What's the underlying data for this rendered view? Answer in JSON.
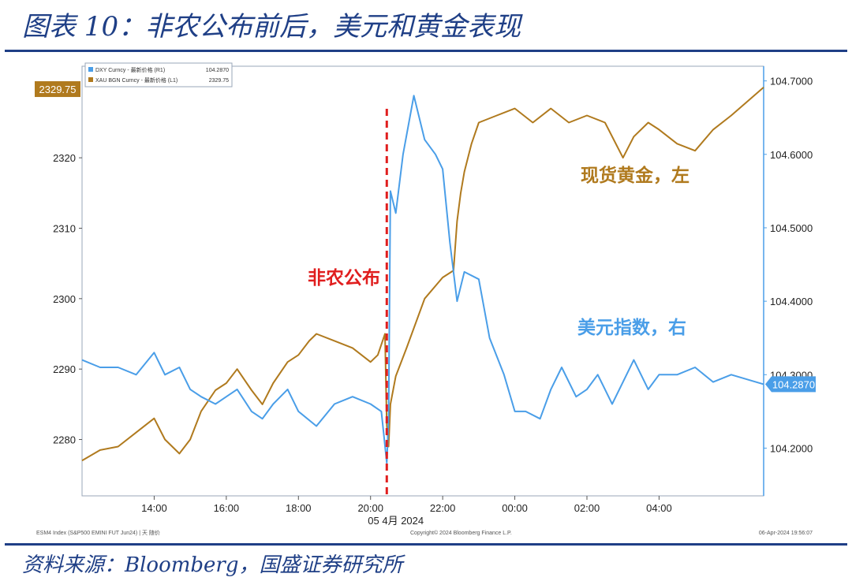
{
  "title": "图表 10：非农公布前后，美元和黄金表现",
  "source": "资料来源：Bloomberg，国盛证券研究所",
  "chart_data": {
    "type": "line",
    "legend": {
      "placement": "top-left",
      "entries": [
        {
          "label": "DXY Curncy - 最新价格 (R1)",
          "value": "104.2870"
        },
        {
          "label": "XAU BGN Curncy - 最新价格 (L1)",
          "value": "2329.75"
        }
      ]
    },
    "x_ticks": [
      "14:00",
      "16:00",
      "18:00",
      "20:00",
      "22:00",
      "00:00",
      "02:00",
      "04:00"
    ],
    "x_ticks_hours": [
      14,
      16,
      18,
      20,
      22,
      24,
      26,
      28
    ],
    "xlim_hours": [
      12.0,
      30.9
    ],
    "xlabel": "05 4月 2024",
    "y_left": {
      "ticks": [
        "2280",
        "2290",
        "2300",
        "2310",
        "2320"
      ],
      "tick_values": [
        2280,
        2290,
        2300,
        2310,
        2320
      ],
      "ylim": [
        2272,
        2333
      ],
      "last_value_label": "2329.75",
      "last_value": 2329.75
    },
    "y_right": {
      "ticks": [
        "104.2000",
        "104.3000",
        "104.4000",
        "104.5000",
        "104.6000",
        "104.7000"
      ],
      "tick_values": [
        104.2,
        104.3,
        104.4,
        104.5,
        104.6,
        104.7
      ],
      "ylim": [
        104.135,
        104.72
      ],
      "last_value_label": "104.2870",
      "last_value": 104.287
    },
    "series": [
      {
        "name": "XAU BGN Curncy",
        "axis": "left",
        "color": "#b07a1e",
        "x": [
          12.0,
          12.5,
          13.0,
          13.5,
          14.0,
          14.3,
          14.7,
          15.0,
          15.3,
          15.7,
          16.0,
          16.3,
          16.7,
          17.0,
          17.3,
          17.7,
          18.0,
          18.3,
          18.5,
          19.0,
          19.5,
          20.0,
          20.2,
          20.4,
          20.45,
          20.5,
          20.55,
          20.7,
          21.0,
          21.5,
          22.0,
          22.3,
          22.4,
          22.5,
          22.6,
          22.8,
          23.0,
          23.5,
          24.0,
          24.5,
          25.0,
          25.5,
          26.0,
          26.5,
          27.0,
          27.3,
          27.7,
          28.0,
          28.5,
          29.0,
          29.5,
          30.0,
          30.9
        ],
        "y": [
          2277,
          2278.5,
          2279,
          2281,
          2283,
          2280,
          2278,
          2280,
          2284,
          2287,
          2288,
          2290,
          2287,
          2285,
          2288,
          2291,
          2292,
          2294,
          2295,
          2294,
          2293,
          2291,
          2292,
          2295,
          2282,
          2279,
          2285,
          2289,
          2293,
          2300,
          2303,
          2304,
          2311,
          2315,
          2318,
          2322,
          2325,
          2326,
          2327,
          2325,
          2327,
          2325,
          2326,
          2325,
          2320,
          2323,
          2325,
          2324,
          2322,
          2321,
          2324,
          2326,
          2330
        ]
      },
      {
        "name": "DXY Curncy",
        "axis": "right",
        "color": "#4a9ee8",
        "x": [
          12.0,
          12.5,
          13.0,
          13.5,
          14.0,
          14.3,
          14.7,
          15.0,
          15.3,
          15.7,
          16.0,
          16.3,
          16.7,
          17.0,
          17.3,
          17.7,
          18.0,
          18.5,
          19.0,
          19.5,
          20.0,
          20.3,
          20.45,
          20.5,
          20.55,
          20.7,
          20.9,
          21.2,
          21.5,
          21.8,
          22.0,
          22.2,
          22.4,
          22.6,
          23.0,
          23.3,
          23.7,
          24.0,
          24.3,
          24.7,
          25.0,
          25.3,
          25.7,
          26.0,
          26.3,
          26.7,
          27.0,
          27.3,
          27.7,
          28.0,
          28.5,
          29.0,
          29.5,
          30.0,
          30.9
        ],
        "y": [
          104.32,
          104.31,
          104.31,
          104.3,
          104.33,
          104.3,
          104.31,
          104.28,
          104.27,
          104.26,
          104.27,
          104.28,
          104.25,
          104.24,
          104.26,
          104.28,
          104.25,
          104.23,
          104.26,
          104.27,
          104.26,
          104.25,
          104.18,
          104.24,
          104.55,
          104.52,
          104.6,
          104.68,
          104.62,
          104.6,
          104.58,
          104.48,
          104.4,
          104.44,
          104.43,
          104.35,
          104.3,
          104.25,
          104.25,
          104.24,
          104.28,
          104.31,
          104.27,
          104.28,
          104.3,
          104.26,
          104.29,
          104.32,
          104.28,
          104.3,
          104.3,
          104.31,
          104.29,
          104.3,
          104.287
        ]
      }
    ],
    "event_line": {
      "x_hour": 20.45,
      "color": "#e01e1e"
    },
    "annotations": [
      {
        "text": "非农公布",
        "color": "#e01e1e"
      },
      {
        "text": "现货黄金，左",
        "color": "#b07a1e"
      },
      {
        "text": "美元指数，右",
        "color": "#4a9ee8"
      }
    ],
    "footer": {
      "left": "ESM4 Index (S&P500 EMINI FUT Jun24) | 天 随价",
      "center": "Copyright© 2024 Bloomberg Finance L.P.",
      "right": "06-Apr-2024 19:56:07"
    }
  }
}
